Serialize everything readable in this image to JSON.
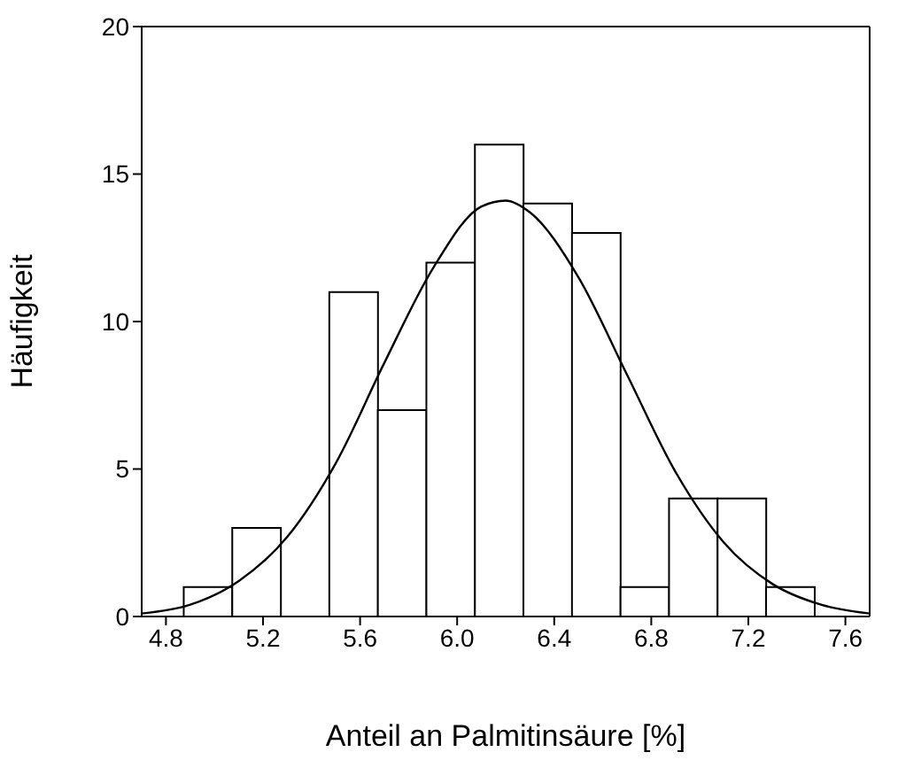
{
  "chart_data": {
    "type": "histogram",
    "xlabel": "Anteil an Palmitinsäure [%]",
    "ylabel": "Häufigkeit",
    "bins": [
      4.875,
      5.075,
      5.275,
      5.475,
      5.675,
      5.875,
      6.075,
      6.275,
      6.475,
      6.675,
      6.875,
      7.075,
      7.275,
      7.475
    ],
    "values": [
      1,
      3,
      0,
      11,
      7,
      12,
      16,
      14,
      13,
      1,
      4,
      4,
      1
    ],
    "color": "#ffffff",
    "series": [
      {
        "type": "line",
        "color": "#000000",
        "x": [
          4.7,
          4.9,
          5.1,
          5.3,
          5.5,
          5.7,
          5.9,
          6.1,
          6.2,
          6.3,
          6.5,
          6.7,
          6.9,
          7.1,
          7.3,
          7.5,
          7.7
        ],
        "values": [
          0.1,
          0.4,
          1.2,
          2.7,
          5.2,
          8.6,
          11.8,
          13.9,
          14.1,
          13.7,
          11.5,
          8.2,
          4.9,
          2.5,
          1.1,
          0.4,
          0.1
        ]
      }
    ],
    "xlim": [
      4.7,
      7.7
    ],
    "xticks": [
      {
        "value": 4.8,
        "label": "4.8"
      },
      {
        "value": 5.2,
        "label": "5.2"
      },
      {
        "value": 5.6,
        "label": "5.6"
      },
      {
        "value": 6,
        "label": "6.0"
      },
      {
        "value": 6.4,
        "label": "6.4"
      },
      {
        "value": 6.8,
        "label": "6.8"
      },
      {
        "value": 7.2,
        "label": "7.2"
      },
      {
        "value": 7.6,
        "label": "7.6"
      }
    ],
    "ylim": [
      0,
      20
    ],
    "yticks": [
      0,
      5,
      10,
      15,
      20
    ]
  }
}
